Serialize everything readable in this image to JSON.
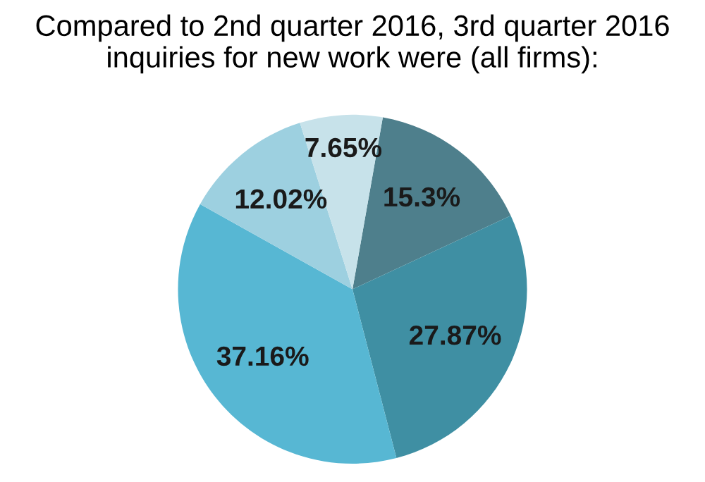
{
  "chart_data": {
    "type": "pie",
    "title": "Compared to 2nd quarter 2016, 3rd quarter 2016 inquiries for new work were (all firms):",
    "categories": [
      null,
      null,
      null,
      null,
      null
    ],
    "values": [
      15.3,
      27.87,
      37.16,
      12.02,
      7.65
    ],
    "colors": [
      "#4e7f8c",
      "#3f8fa3",
      "#57b7d3",
      "#9dd0e0",
      "#c7e2ea"
    ],
    "value_labels": [
      "15.3%",
      "27.87%",
      "37.16%",
      "12.02%",
      "7.65%"
    ]
  }
}
